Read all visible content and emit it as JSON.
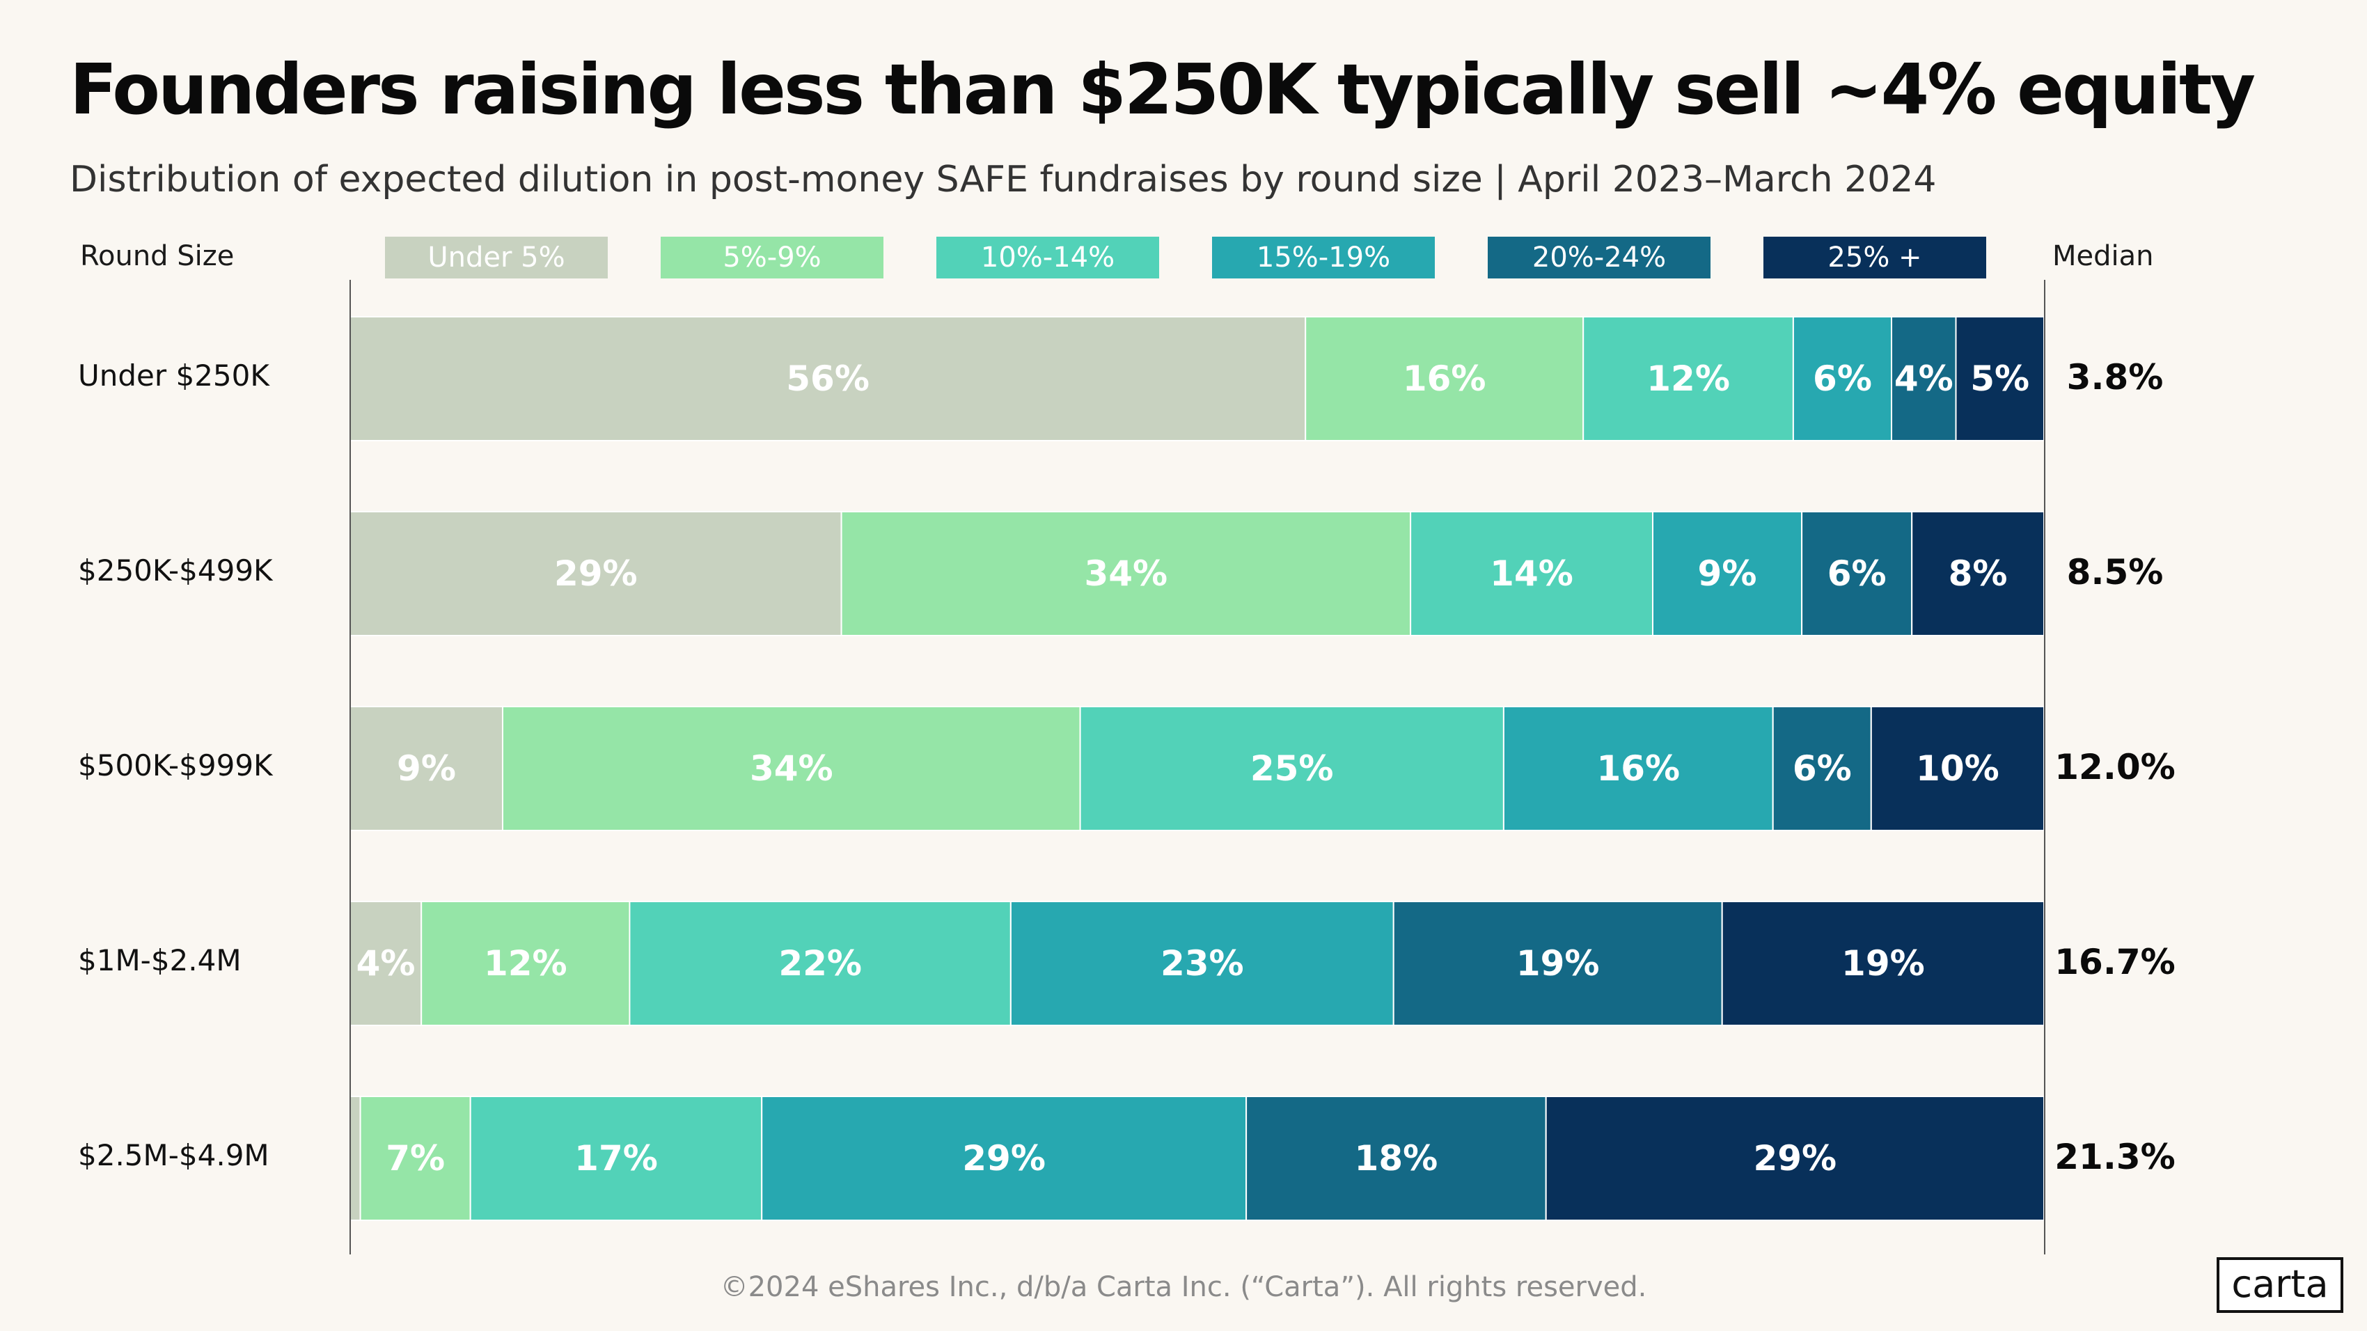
{
  "title": "Founders raising less than $250K typically sell ~4% equity",
  "subtitle": "Distribution of expected dilution in post-money SAFE fundraises by round size | April 2023–March 2024",
  "footer": "©2024 eShares Inc., d/b/a Carta Inc. (“Carta”). All rights reserved.",
  "logo_text": "carta",
  "chart_data": {
    "type": "bar",
    "orientation": "horizontal",
    "stacked": true,
    "normalized": true,
    "xlim": [
      0,
      100
    ],
    "row_header": "Round Size",
    "median_header": "Median",
    "categories": [
      "Under $250K",
      "$250K-$499K",
      "$500K-$999K",
      "$1M-$2.4M",
      "$2.5M-$4.9M"
    ],
    "medians": [
      "3.8%",
      "8.5%",
      "12.0%",
      "16.7%",
      "21.3%"
    ],
    "series": [
      {
        "name": "Under 5%",
        "color": "#c8d2c0",
        "values": [
          56.4,
          29.0,
          9.0,
          4.2,
          0.6
        ],
        "labels": [
          "56%",
          "29%",
          "9%",
          "4%",
          ""
        ]
      },
      {
        "name": "5%-9%",
        "color": "#95e5a7",
        "values": [
          16.4,
          33.6,
          34.1,
          12.3,
          6.5
        ],
        "labels": [
          "16%",
          "34%",
          "34%",
          "12%",
          "7%"
        ]
      },
      {
        "name": "10%-14%",
        "color": "#52d2b8",
        "values": [
          12.4,
          14.3,
          25.0,
          22.5,
          17.2
        ],
        "labels": [
          "12%",
          "14%",
          "25%",
          "22%",
          "17%"
        ]
      },
      {
        "name": "15%-19%",
        "color": "#27a8b0",
        "values": [
          5.8,
          8.8,
          15.9,
          22.6,
          28.6
        ],
        "labels": [
          "6%",
          "9%",
          "16%",
          "23%",
          "29%"
        ]
      },
      {
        "name": "20%-24%",
        "color": "#146986",
        "values": [
          3.8,
          6.5,
          5.8,
          19.4,
          17.7
        ],
        "labels": [
          "4%",
          "6%",
          "6%",
          "19%",
          "18%"
        ]
      },
      {
        "name": "25% +",
        "color": "#08305a",
        "values": [
          5.2,
          7.8,
          10.2,
          19.0,
          29.4
        ],
        "labels": [
          "5%",
          "8%",
          "10%",
          "19%",
          "29%"
        ]
      }
    ]
  }
}
